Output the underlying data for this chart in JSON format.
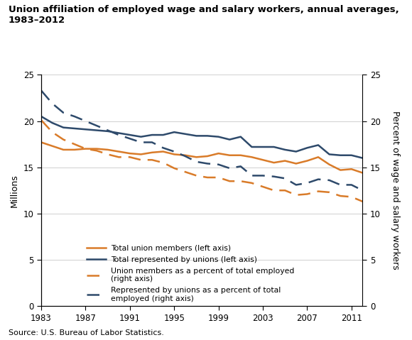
{
  "title_line1": "Union affiliation of employed wage and salary workers, annual averages,",
  "title_line2": "1983–2012",
  "source": "Source: U.S. Bureau of Labor Statistics.",
  "years": [
    1983,
    1984,
    1985,
    1986,
    1987,
    1988,
    1989,
    1990,
    1991,
    1992,
    1993,
    1994,
    1995,
    1996,
    1997,
    1998,
    1999,
    2000,
    2001,
    2002,
    2003,
    2004,
    2005,
    2006,
    2007,
    2008,
    2009,
    2010,
    2011,
    2012
  ],
  "total_members": [
    17.7,
    17.3,
    16.9,
    16.9,
    17.0,
    17.0,
    16.9,
    16.7,
    16.5,
    16.4,
    16.6,
    16.7,
    16.4,
    16.3,
    16.1,
    16.2,
    16.5,
    16.3,
    16.3,
    16.1,
    15.8,
    15.5,
    15.7,
    15.4,
    15.7,
    16.1,
    15.3,
    14.7,
    14.8,
    14.4
  ],
  "total_represented": [
    20.5,
    19.8,
    19.3,
    19.2,
    19.1,
    19.0,
    18.9,
    18.7,
    18.5,
    18.3,
    18.5,
    18.5,
    18.8,
    18.6,
    18.4,
    18.4,
    18.3,
    18.0,
    18.3,
    17.2,
    17.2,
    17.2,
    16.9,
    16.7,
    17.1,
    17.4,
    16.4,
    16.3,
    16.3,
    16.0
  ],
  "pct_members": [
    20.1,
    18.8,
    18.0,
    17.5,
    17.0,
    16.8,
    16.4,
    16.1,
    16.1,
    15.8,
    15.8,
    15.5,
    14.9,
    14.5,
    14.1,
    13.9,
    13.9,
    13.5,
    13.5,
    13.3,
    12.9,
    12.5,
    12.5,
    12.0,
    12.1,
    12.4,
    12.3,
    11.9,
    11.8,
    11.3
  ],
  "pct_represented": [
    23.3,
    21.9,
    20.9,
    20.5,
    20.0,
    19.5,
    19.0,
    18.5,
    18.1,
    17.7,
    17.7,
    17.1,
    16.7,
    16.2,
    15.6,
    15.4,
    15.3,
    14.9,
    15.1,
    14.1,
    14.1,
    14.0,
    13.8,
    13.1,
    13.3,
    13.7,
    13.6,
    13.1,
    13.1,
    12.5
  ],
  "left_ylim": [
    0,
    25
  ],
  "right_ylim": [
    0,
    25
  ],
  "yticks": [
    0,
    5,
    10,
    15,
    20,
    25
  ],
  "xticks": [
    1983,
    1987,
    1991,
    1995,
    1999,
    2003,
    2007,
    2011
  ],
  "color_orange": "#D97B29",
  "color_navy": "#2E4A6B",
  "ylabel_left": "Millions",
  "ylabel_right": "Percent of wage and salary workers",
  "legend_items": [
    "Total union members (left axis)",
    "Total represented by unions (left axis)",
    "Union members as a percent of total employed\n(right axis)",
    "Represented by unions as a percent of total\nemployed (right axis)"
  ]
}
